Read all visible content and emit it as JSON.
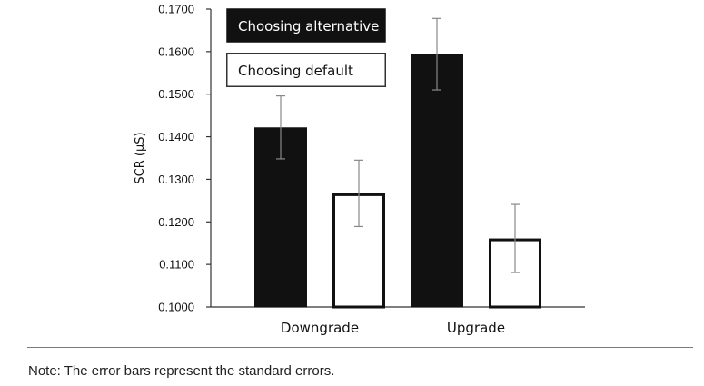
{
  "chart_data": {
    "type": "bar",
    "title": "",
    "xlabel": "",
    "ylabel": "SCR (µS)",
    "categories": [
      "Downgrade",
      "Upgrade"
    ],
    "ylim": [
      0.1,
      0.17
    ],
    "yticks": [
      0.1,
      0.11,
      0.12,
      0.13,
      0.14,
      0.15,
      0.16,
      0.17
    ],
    "ytick_labels": [
      "0.1000",
      "0.1100",
      "0.1200",
      "0.1300",
      "0.1400",
      "0.1500",
      "0.1600",
      "0.1700"
    ],
    "grid": false,
    "legend": "top-left",
    "series": [
      {
        "name": "Choosing alternative",
        "fill": "#111111",
        "stroke": "#111111",
        "label_color": "#ffffff",
        "values": [
          0.1422,
          0.1594
        ],
        "errors": [
          0.0074,
          0.0084
        ]
      },
      {
        "name": "Choosing default",
        "fill": "#ffffff",
        "stroke": "#111111",
        "label_color": "#111111",
        "values": [
          0.1267,
          0.1161
        ],
        "errors": [
          0.0078,
          0.008
        ]
      }
    ]
  },
  "note": "Note: The error bars represent the standard errors.",
  "colors": {
    "axis": "#333333",
    "error_bar": "#888888",
    "rule": "#7a7a7a"
  }
}
